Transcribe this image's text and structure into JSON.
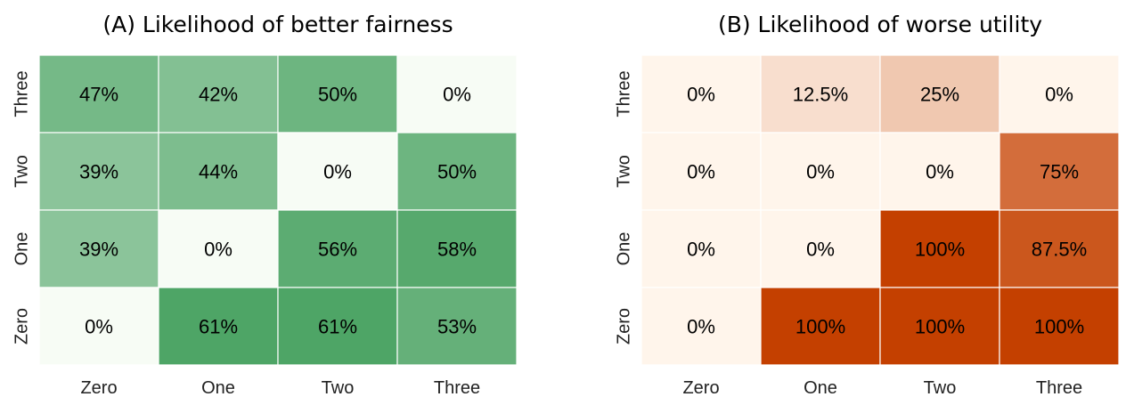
{
  "chart_data": [
    {
      "type": "heatmap",
      "title": "(A) Likelihood of better fairness",
      "x_categories": [
        "Zero",
        "One",
        "Two",
        "Three"
      ],
      "y_categories": [
        "Three",
        "Two",
        "One",
        "Zero"
      ],
      "values": [
        [
          47,
          42,
          50,
          0
        ],
        [
          39,
          44,
          0,
          50
        ],
        [
          39,
          0,
          56,
          58
        ],
        [
          0,
          61,
          61,
          53
        ]
      ],
      "labels": [
        [
          "47%",
          "42%",
          "50%",
          "0%"
        ],
        [
          "39%",
          "44%",
          "0%",
          "50%"
        ],
        [
          "39%",
          "0%",
          "56%",
          "58%"
        ],
        [
          "0%",
          "61%",
          "61%",
          "53%"
        ]
      ],
      "colormap": "greens",
      "color_low": "#f7fcf5",
      "color_high": "#1a8a3a",
      "vmin": 0,
      "vmax": 80
    },
    {
      "type": "heatmap",
      "title": "(B) Likelihood of worse utility",
      "x_categories": [
        "Zero",
        "One",
        "Two",
        "Three"
      ],
      "y_categories": [
        "Three",
        "Two",
        "One",
        "Zero"
      ],
      "values": [
        [
          0,
          12.5,
          25,
          0
        ],
        [
          0,
          0,
          0,
          75
        ],
        [
          0,
          0,
          100,
          87.5
        ],
        [
          0,
          100,
          100,
          100
        ]
      ],
      "labels": [
        [
          "0%",
          "12.5%",
          "25%",
          "0%"
        ],
        [
          "0%",
          "0%",
          "0%",
          "75%"
        ],
        [
          "0%",
          "0%",
          "100%",
          "87.5%"
        ],
        [
          "0%",
          "100%",
          "100%",
          "100%"
        ]
      ],
      "colormap": "oranges",
      "color_low": "#fff5eb",
      "color_high": "#c44000",
      "vmin": 0,
      "vmax": 100
    }
  ]
}
